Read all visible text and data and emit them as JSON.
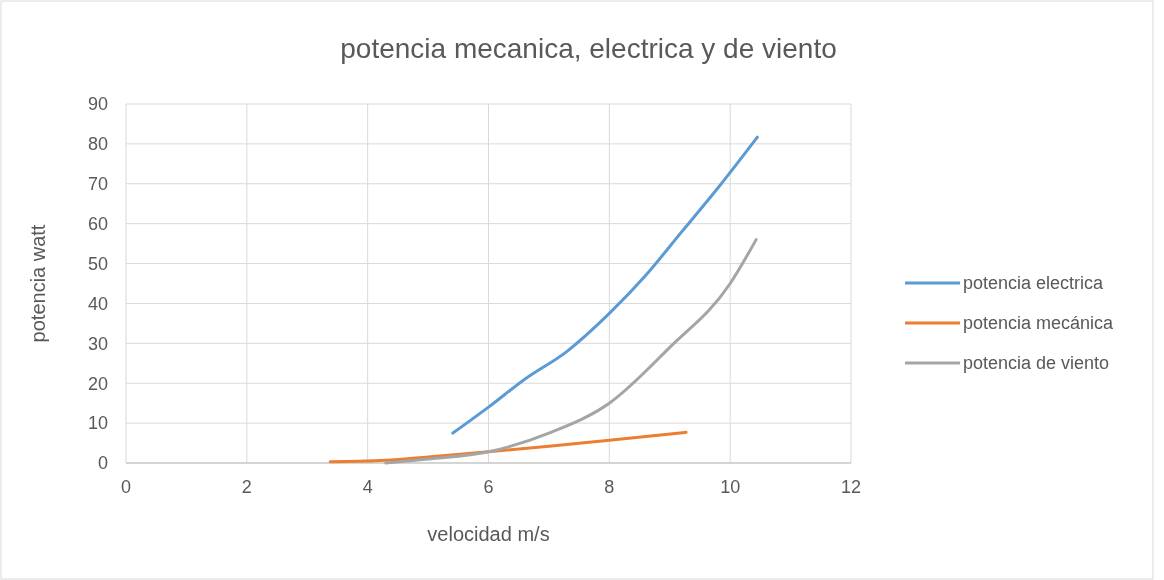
{
  "chart_data": {
    "type": "line",
    "title": "potencia mecanica, electrica y de viento",
    "xlabel": "velocidad m/s",
    "ylabel": "potencia watt",
    "xlim": [
      0,
      12
    ],
    "xticks": [
      0,
      2,
      4,
      6,
      8,
      10,
      12
    ],
    "ylim": [
      0,
      90
    ],
    "yticks": [
      0,
      10,
      20,
      30,
      40,
      50,
      60,
      70,
      80,
      90
    ],
    "grid": true,
    "legend": "right",
    "marker": "none",
    "line_style": "solid",
    "series": [
      {
        "name": "potencia electrica",
        "color": "#5b9bd5",
        "x": [
          5.41,
          6,
          6.6,
          7.3,
          8,
          8.6,
          9.2,
          9.8,
          10.45
        ],
        "values": [
          7.5,
          14,
          21,
          28,
          37.5,
          47,
          58,
          69,
          81.7
        ]
      },
      {
        "name": "potencia mecánica",
        "color": "#ed7d31",
        "x": [
          3.38,
          4.2,
          5,
          6,
          7,
          8,
          9.27
        ],
        "values": [
          0.3,
          0.6,
          1.5,
          2.8,
          4.2,
          5.7,
          7.7
        ]
      },
      {
        "name": "potencia de viento",
        "color": "#a5a5a5",
        "x": [
          4.3,
          5,
          6,
          7,
          8,
          9,
          10,
          10.43
        ],
        "values": [
          0,
          1,
          2.8,
          7.5,
          15,
          29,
          45,
          56
        ]
      }
    ]
  }
}
